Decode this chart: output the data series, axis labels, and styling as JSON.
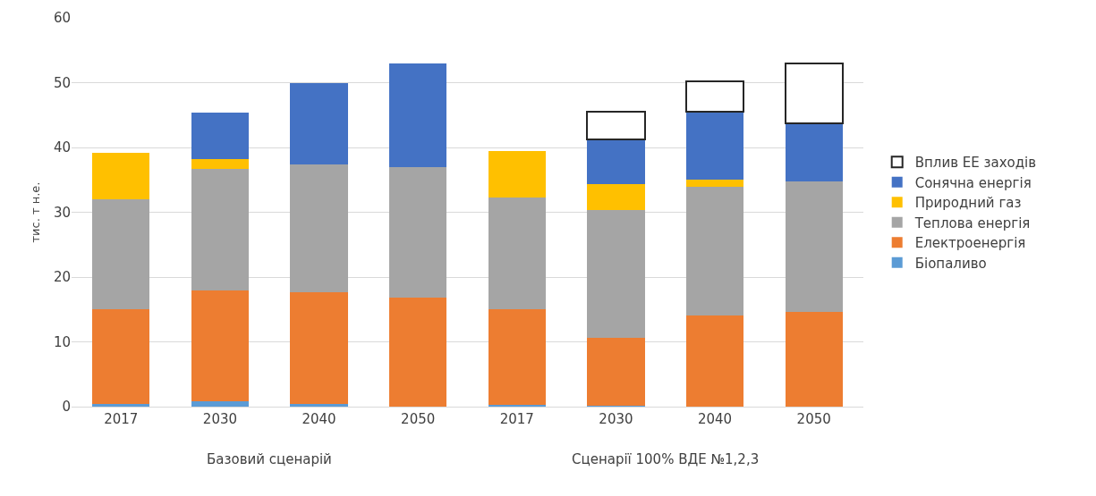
{
  "chart_data": {
    "type": "bar",
    "stacked": true,
    "ylabel": "тис. т н.е.",
    "categories": [
      "2017",
      "2030",
      "2040",
      "2050",
      "2017",
      "2030",
      "2040",
      "2050"
    ],
    "annotations": [
      "Базовий сценарій",
      "Сценарії 100% ВДЕ №1,2,3"
    ],
    "series": [
      {
        "name": "Біопаливо",
        "color": "#5b9bd5",
        "values": [
          0.4,
          0.8,
          0.4,
          0,
          0.3,
          0.2,
          0,
          0
        ]
      },
      {
        "name": "Електроенергія",
        "color": "#ed7d31",
        "values": [
          14.6,
          17.1,
          17.2,
          16.8,
          14.8,
          10.4,
          14.1,
          14.6
        ]
      },
      {
        "name": "Теплова енергія",
        "color": "#a5a5a5",
        "values": [
          17.0,
          18.8,
          19.8,
          20.1,
          17.2,
          19.8,
          19.8,
          20.1
        ]
      },
      {
        "name": "Природний газ",
        "color": "#ffc000",
        "values": [
          7.2,
          1.5,
          0,
          0,
          7.1,
          3.9,
          1.1,
          0
        ]
      },
      {
        "name": "Сонячна енергія",
        "color": "#4472c4",
        "values": [
          0,
          7.2,
          12.6,
          16.0,
          0,
          7.0,
          10.5,
          9.0
        ]
      },
      {
        "name": "Вплив ЕЕ заходів",
        "color": "#ffffff",
        "values": [
          0,
          0,
          0,
          0,
          0,
          4.2,
          4.7,
          9.3
        ]
      }
    ],
    "ylim": [
      0,
      60
    ],
    "yticks": [
      0,
      10,
      20,
      30,
      40,
      50,
      60
    ],
    "grid": "y",
    "legend": "right"
  }
}
